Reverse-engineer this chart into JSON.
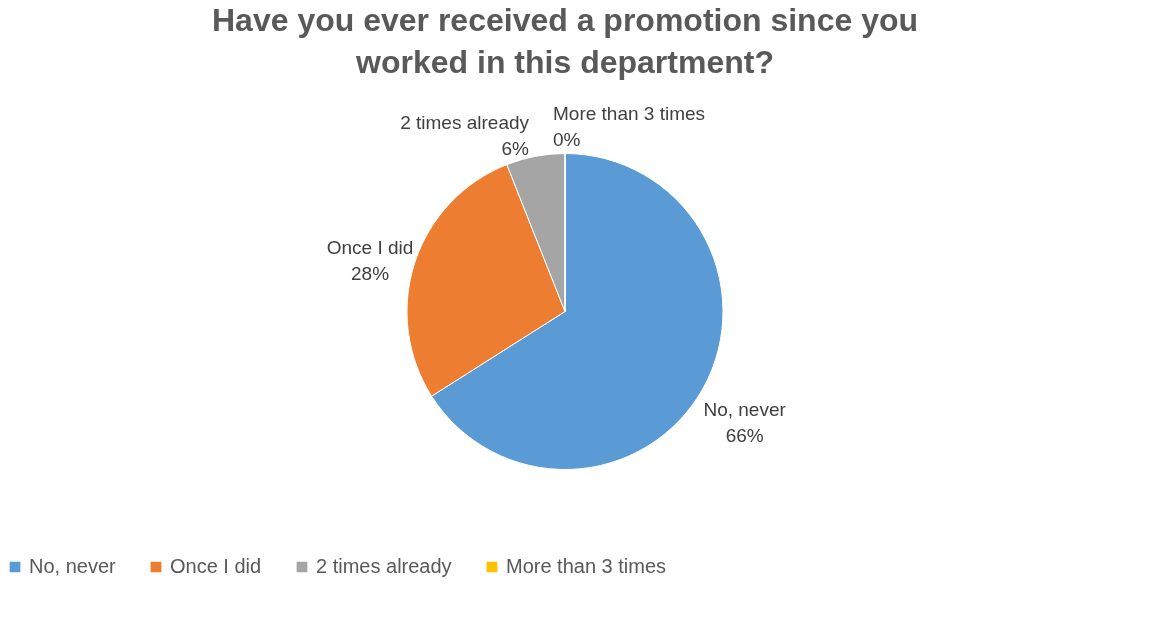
{
  "chart_data": {
    "type": "pie",
    "title": "Have you ever received a promotion since you worked in this department?",
    "categories": [
      "No, never",
      "Once I did",
      "2 times already",
      "More than 3 times"
    ],
    "values": [
      66,
      28,
      6,
      0
    ],
    "value_labels": [
      "66%",
      "28%",
      "6%",
      "0%"
    ],
    "colors": [
      "#5b9bd5",
      "#ed7d31",
      "#a5a5a5",
      "#ffc000"
    ],
    "legend": "bottom"
  }
}
